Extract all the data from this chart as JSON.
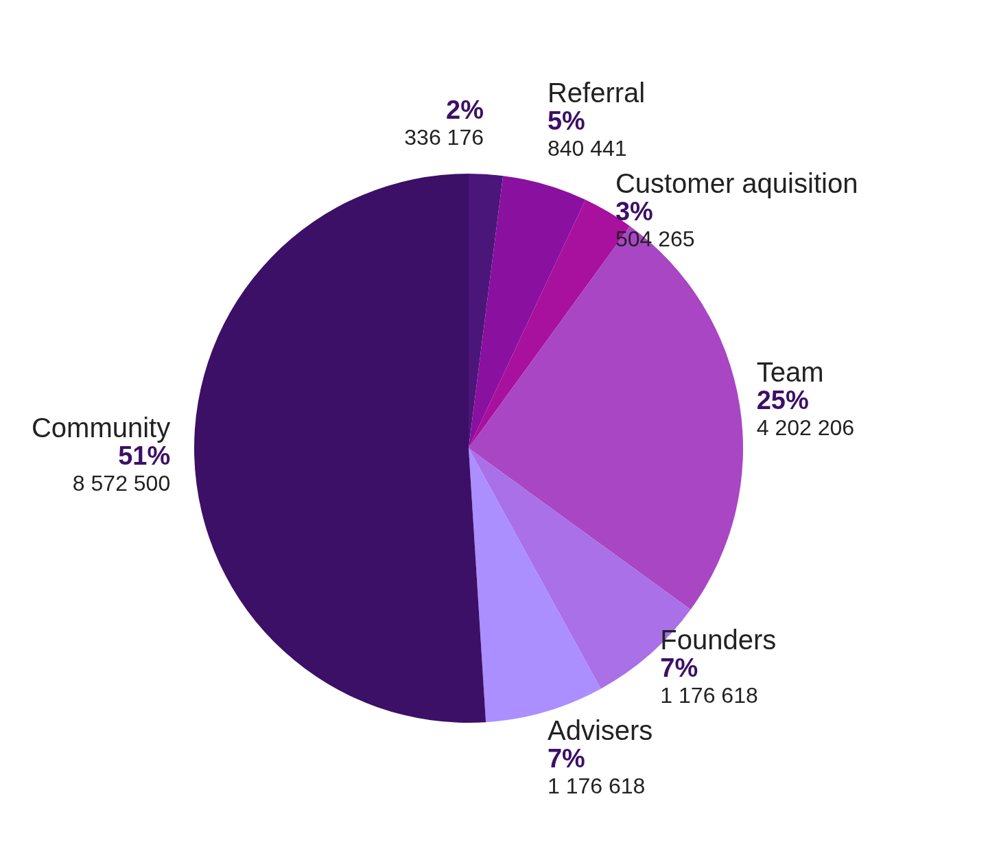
{
  "chart_data": {
    "type": "pie",
    "categories": [
      null,
      "Referral",
      "Customer aquisition",
      "Team",
      "Founders",
      "Advisers",
      "Community"
    ],
    "values": [
      2,
      5,
      3,
      25,
      7,
      7,
      51
    ],
    "colors": [
      "#4a1679",
      "#8a10a0",
      "#a8109e",
      "#a946c4",
      "#a970e8",
      "#ab8eff",
      "#3c1066"
    ],
    "value_labels": [
      "2%",
      "5%",
      "3%",
      "25%",
      "7%",
      "7%",
      "51%"
    ],
    "annotations": [
      "336 176",
      "840 441",
      "504 265",
      "4 202 206",
      "1 176 618",
      "1 176 618",
      "8 572 500"
    ],
    "legend": false
  }
}
